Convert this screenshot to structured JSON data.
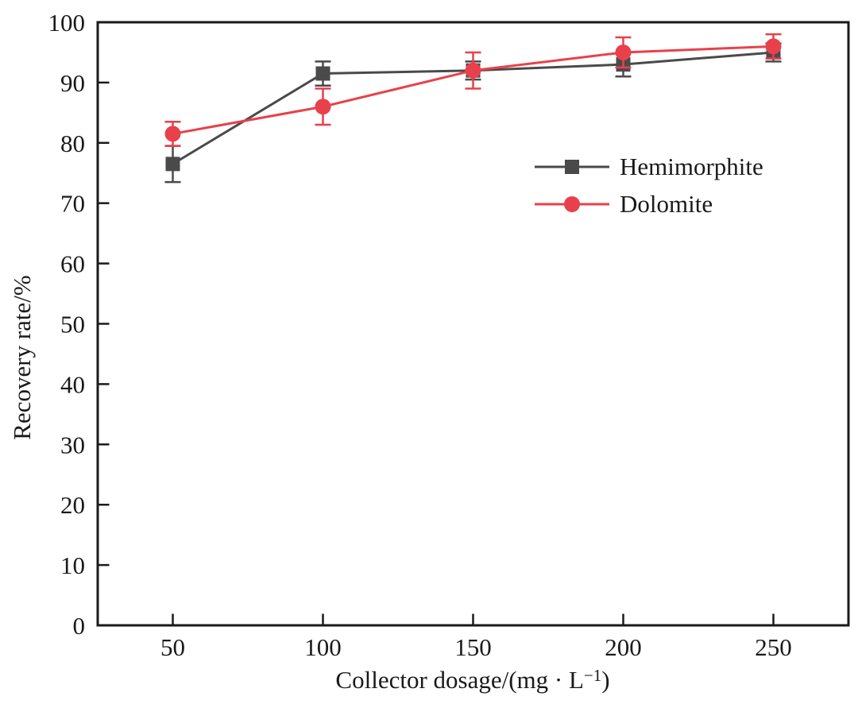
{
  "chart_data": {
    "type": "line",
    "title": "",
    "xlabel": "Collector dosage/(mg · L⁻¹)",
    "xlabel_parts": {
      "pre": "Collector dosage/(mg · L",
      "sup": "−1",
      "post": ")"
    },
    "ylabel": "Recovery rate/%",
    "x": [
      50,
      100,
      150,
      200,
      250
    ],
    "x_ticks": [
      50,
      100,
      150,
      200,
      250
    ],
    "y_ticks": [
      0,
      10,
      20,
      30,
      40,
      50,
      60,
      70,
      80,
      90,
      100
    ],
    "xlim": [
      25,
      275
    ],
    "ylim": [
      0,
      100
    ],
    "grid": false,
    "legend_position": "inside-upper-right",
    "series": [
      {
        "name": "Hemimorphite",
        "marker": "square",
        "color": "#4a4a4a",
        "values": [
          76.5,
          91.5,
          92,
          93,
          95
        ],
        "errors": [
          3,
          2,
          1.5,
          2,
          1.5
        ]
      },
      {
        "name": "Dolomite",
        "marker": "circle",
        "color": "#e8414b",
        "values": [
          81.5,
          86,
          92,
          95,
          96
        ],
        "errors": [
          2,
          3,
          3,
          2.5,
          2
        ]
      }
    ]
  },
  "colors": {
    "background": "#ffffff",
    "axis": "#1a1a1a",
    "text": "#1a1a1a"
  }
}
